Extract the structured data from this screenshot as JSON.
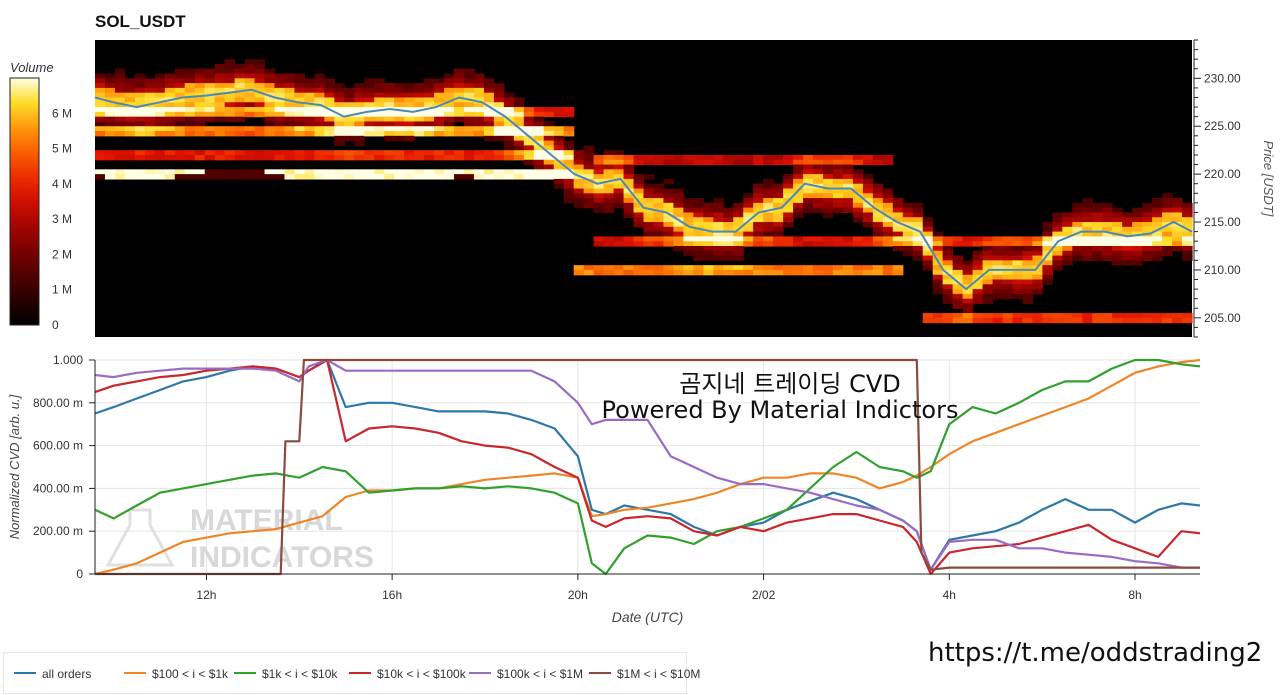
{
  "title": "SOL_USDT",
  "overlay": {
    "line1": "곰지네 트레이딩 CVD",
    "line2": "Powered By Material Indictors",
    "url": "https://t.me/oddstrading2",
    "watermark_line1": "MATERIAL",
    "watermark_line2": "INDICATORS"
  },
  "colors": {
    "all_orders": "#2e78a8",
    "100_1k": "#f08528",
    "1k_10k": "#31a02c",
    "10k_100k": "#c9262d",
    "100k_1M": "#9a6bc4",
    "1M_10M": "#8a4a3e",
    "price_line": "#4a8ab8",
    "grid": "#e5e5e5"
  },
  "chart_data": [
    {
      "type": "heatmap",
      "title": "SOL_USDT",
      "colorbar_label": "Volume",
      "colorbar_ticks": [
        "0",
        "1 M",
        "2 M",
        "3 M",
        "4 M",
        "5 M",
        "6 M"
      ],
      "colorbar_range": [
        0,
        7000000
      ],
      "ylabel": "Price [USDT]",
      "y_ticks": [
        "205.00",
        "210.00",
        "215.00",
        "220.00",
        "225.00",
        "230.00"
      ],
      "ylim": [
        203,
        234
      ],
      "x_range_hours": [
        9.6,
        33.4
      ],
      "price_series": {
        "x": [
          9.6,
          10,
          10.5,
          11,
          11.5,
          12,
          12.5,
          13,
          13.5,
          14,
          14.5,
          15,
          15.5,
          16,
          16.5,
          17,
          17.5,
          18,
          18.5,
          19,
          19.5,
          20,
          20.5,
          21,
          21.5,
          22,
          22.5,
          23,
          23.5,
          24,
          24.5,
          25,
          25.5,
          26,
          26.5,
          27,
          27.5,
          28,
          28.5,
          29,
          29.5,
          30,
          30.5,
          31,
          31.5,
          32,
          32.5,
          33,
          33.4
        ],
        "y": [
          228,
          227.5,
          227,
          227.5,
          228,
          228.2,
          228.5,
          228.8,
          228,
          227.5,
          227.2,
          226,
          226.5,
          226.8,
          226.5,
          227,
          228,
          227.5,
          226,
          224,
          222,
          220,
          219,
          219.5,
          216.5,
          216,
          214.5,
          214,
          214,
          216,
          216.5,
          219,
          218.5,
          218.5,
          216.5,
          215,
          214,
          210,
          208,
          210,
          210,
          210,
          213,
          214,
          214,
          213.5,
          213.8,
          215,
          214
        ]
      },
      "bands": [
        {
          "price": 220.0,
          "start": 9.6,
          "end": 20.0,
          "intensity": 1.0
        },
        {
          "price": 224.5,
          "start": 9.6,
          "end": 20.0,
          "intensity": 0.65
        },
        {
          "price": 222.0,
          "start": 9.6,
          "end": 20.0,
          "intensity": 0.55
        },
        {
          "price": 226.5,
          "start": 9.6,
          "end": 20.0,
          "intensity": 0.5
        },
        {
          "price": 210.0,
          "start": 20.0,
          "end": 27.2,
          "intensity": 0.75
        },
        {
          "price": 213.0,
          "start": 20.5,
          "end": 33.4,
          "intensity": 0.5
        },
        {
          "price": 205.0,
          "start": 27.5,
          "end": 33.4,
          "intensity": 0.6
        },
        {
          "price": 221.5,
          "start": 20.5,
          "end": 27.0,
          "intensity": 0.45
        }
      ]
    },
    {
      "type": "line",
      "xlabel": "Date (UTC)",
      "ylabel": "Normalized CVD [arb. u.]",
      "y_ticks": [
        "0",
        "200.00 m",
        "400.00 m",
        "600.00 m",
        "800.00 m",
        "1.000"
      ],
      "ylim": [
        0,
        1.0
      ],
      "x_ticks": [
        {
          "label": "12h",
          "x": 12
        },
        {
          "label": "16h",
          "x": 16
        },
        {
          "label": "20h",
          "x": 20
        },
        {
          "label": "2/02",
          "x": 24
        },
        {
          "label": "4h",
          "x": 28
        },
        {
          "label": "8h",
          "x": 32
        }
      ],
      "xlim": [
        9.6,
        33.4
      ],
      "series": [
        {
          "name": "all orders",
          "key": "all_orders",
          "x": [
            9.6,
            10,
            10.5,
            11,
            11.5,
            12,
            12.5,
            13,
            13.5,
            14,
            14.2,
            14.6,
            15,
            15.5,
            16,
            16.5,
            17,
            17.5,
            18,
            18.5,
            19,
            19.5,
            20,
            20.3,
            20.6,
            21,
            21.5,
            22,
            22.5,
            23,
            23.5,
            24,
            24.5,
            25,
            25.5,
            26,
            26.5,
            27,
            27.3,
            27.6,
            28,
            28.5,
            29,
            29.5,
            30,
            30.5,
            31,
            31.5,
            32,
            32.5,
            33,
            33.4
          ],
          "y": [
            0.75,
            0.78,
            0.82,
            0.86,
            0.9,
            0.92,
            0.95,
            0.97,
            0.96,
            0.92,
            0.95,
            1.0,
            0.78,
            0.8,
            0.8,
            0.78,
            0.76,
            0.76,
            0.76,
            0.75,
            0.72,
            0.68,
            0.55,
            0.3,
            0.28,
            0.32,
            0.3,
            0.28,
            0.22,
            0.18,
            0.22,
            0.24,
            0.3,
            0.34,
            0.38,
            0.35,
            0.3,
            0.25,
            0.2,
            0.02,
            0.16,
            0.18,
            0.2,
            0.24,
            0.3,
            0.35,
            0.3,
            0.3,
            0.24,
            0.3,
            0.33,
            0.32
          ]
        },
        {
          "name": "$100 < i < $1k",
          "key": "100_1k",
          "x": [
            9.6,
            10,
            10.5,
            11,
            11.5,
            12,
            12.5,
            13,
            13.5,
            14,
            14.5,
            15,
            15.5,
            16,
            16.5,
            17,
            17.5,
            18,
            18.5,
            19,
            19.5,
            20,
            20.3,
            20.6,
            21,
            21.5,
            22,
            22.5,
            23,
            23.5,
            24,
            24.5,
            25,
            25.5,
            26,
            26.5,
            27,
            27.3,
            27.6,
            28,
            28.5,
            29,
            29.5,
            30,
            30.5,
            31,
            31.5,
            32,
            32.5,
            33,
            33.4
          ],
          "y": [
            0.0,
            0.02,
            0.05,
            0.1,
            0.15,
            0.17,
            0.19,
            0.2,
            0.21,
            0.24,
            0.27,
            0.36,
            0.39,
            0.39,
            0.4,
            0.4,
            0.42,
            0.44,
            0.45,
            0.46,
            0.47,
            0.45,
            0.27,
            0.28,
            0.3,
            0.31,
            0.33,
            0.35,
            0.38,
            0.42,
            0.45,
            0.45,
            0.47,
            0.47,
            0.45,
            0.4,
            0.43,
            0.46,
            0.5,
            0.56,
            0.62,
            0.66,
            0.7,
            0.74,
            0.78,
            0.82,
            0.88,
            0.94,
            0.97,
            0.99,
            1.0
          ]
        },
        {
          "name": "$1k < i < $10k",
          "key": "1k_10k",
          "x": [
            9.6,
            10,
            10.5,
            11,
            11.5,
            12,
            12.5,
            13,
            13.5,
            14,
            14.5,
            15,
            15.5,
            16,
            16.5,
            17,
            17.5,
            18,
            18.5,
            19,
            19.5,
            20,
            20.3,
            20.6,
            21,
            21.5,
            22,
            22.5,
            23,
            23.5,
            24,
            24.5,
            25,
            25.5,
            26,
            26.5,
            27,
            27.3,
            27.6,
            28,
            28.5,
            29,
            29.5,
            30,
            30.5,
            31,
            31.5,
            32,
            32.5,
            33,
            33.4
          ],
          "y": [
            0.3,
            0.26,
            0.32,
            0.38,
            0.4,
            0.42,
            0.44,
            0.46,
            0.47,
            0.45,
            0.5,
            0.48,
            0.38,
            0.39,
            0.4,
            0.4,
            0.41,
            0.4,
            0.41,
            0.4,
            0.38,
            0.33,
            0.05,
            0.0,
            0.12,
            0.18,
            0.17,
            0.14,
            0.2,
            0.22,
            0.26,
            0.3,
            0.4,
            0.5,
            0.57,
            0.5,
            0.48,
            0.45,
            0.48,
            0.7,
            0.78,
            0.75,
            0.8,
            0.86,
            0.9,
            0.9,
            0.96,
            1.0,
            1.0,
            0.98,
            0.97
          ]
        },
        {
          "name": "$10k < i < $100k",
          "key": "10k_100k",
          "x": [
            9.6,
            10,
            10.5,
            11,
            11.5,
            12,
            12.5,
            13,
            13.5,
            14,
            14.2,
            14.6,
            15,
            15.5,
            16,
            16.5,
            17,
            17.5,
            18,
            18.5,
            19,
            19.5,
            20,
            20.3,
            20.6,
            21,
            21.5,
            22,
            22.5,
            23,
            23.5,
            24,
            24.5,
            25,
            25.5,
            26,
            26.5,
            27,
            27.3,
            27.6,
            28,
            28.5,
            29,
            29.5,
            30,
            30.5,
            31,
            31.5,
            32,
            32.5,
            33,
            33.4
          ],
          "y": [
            0.85,
            0.88,
            0.9,
            0.92,
            0.93,
            0.95,
            0.96,
            0.97,
            0.96,
            0.92,
            0.95,
            1.0,
            0.62,
            0.68,
            0.69,
            0.68,
            0.66,
            0.62,
            0.6,
            0.59,
            0.56,
            0.5,
            0.45,
            0.25,
            0.22,
            0.26,
            0.27,
            0.26,
            0.2,
            0.18,
            0.22,
            0.2,
            0.24,
            0.26,
            0.28,
            0.28,
            0.25,
            0.22,
            0.15,
            0.0,
            0.1,
            0.12,
            0.13,
            0.14,
            0.17,
            0.2,
            0.23,
            0.16,
            0.12,
            0.08,
            0.2,
            0.19
          ]
        },
        {
          "name": "$100k < i < $1M",
          "key": "100k_1M",
          "x": [
            9.6,
            10,
            10.5,
            11,
            11.5,
            12,
            12.5,
            13,
            13.5,
            14,
            14.2,
            14.6,
            15,
            15.5,
            16,
            17,
            18,
            19,
            19.5,
            20,
            20.3,
            20.6,
            21,
            21.5,
            22,
            22.5,
            23,
            23.5,
            24,
            24.5,
            25,
            25.5,
            26,
            26.5,
            27,
            27.3,
            27.6,
            28,
            28.5,
            29,
            29.5,
            30,
            30.5,
            31,
            31.5,
            32,
            32.5,
            33,
            33.4
          ],
          "y": [
            0.93,
            0.92,
            0.94,
            0.95,
            0.96,
            0.96,
            0.96,
            0.96,
            0.95,
            0.9,
            0.97,
            1.0,
            0.95,
            0.95,
            0.95,
            0.95,
            0.95,
            0.95,
            0.9,
            0.8,
            0.7,
            0.72,
            0.72,
            0.72,
            0.55,
            0.5,
            0.45,
            0.42,
            0.42,
            0.4,
            0.38,
            0.35,
            0.32,
            0.3,
            0.25,
            0.2,
            0.02,
            0.15,
            0.16,
            0.16,
            0.12,
            0.12,
            0.1,
            0.09,
            0.08,
            0.06,
            0.05,
            0.03,
            0.03
          ]
        },
        {
          "name": "$1M < i < $10M",
          "key": "1M_10M",
          "x": [
            9.6,
            13.6,
            13.7,
            14.0,
            14.1,
            14.2,
            17,
            20,
            22,
            24,
            27,
            27.3,
            27.4,
            27.6,
            28,
            30,
            33.4
          ],
          "y": [
            0.0,
            0.0,
            0.62,
            0.62,
            1.0,
            1.0,
            1.0,
            1.0,
            1.0,
            1.0,
            1.0,
            1.0,
            0.1,
            0.02,
            0.03,
            0.03,
            0.03
          ]
        }
      ]
    }
  ],
  "legend": [
    {
      "label": "all orders",
      "key": "all_orders"
    },
    {
      "label": "$100 < i < $1k",
      "key": "100_1k"
    },
    {
      "label": "$1k < i < $10k",
      "key": "1k_10k"
    },
    {
      "label": "$10k < i < $100k",
      "key": "10k_100k"
    },
    {
      "label": "$100k < i < $1M",
      "key": "100k_1M"
    },
    {
      "label": "$1M < i < $10M",
      "key": "1M_10M"
    }
  ]
}
